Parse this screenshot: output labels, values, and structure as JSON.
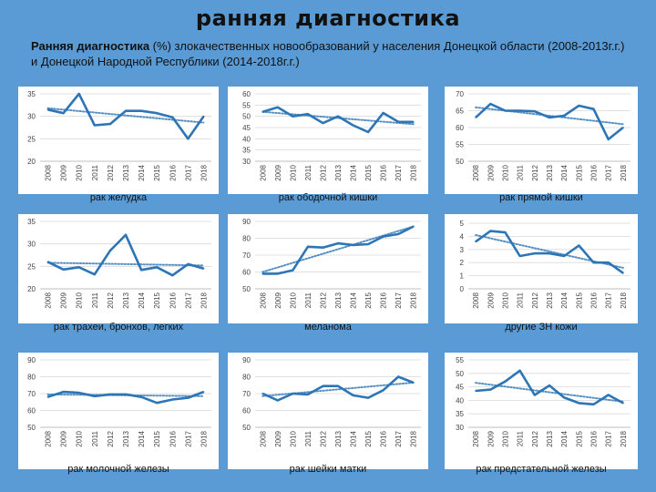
{
  "title": "ранняя диагностика",
  "subtitle_bold": "Ранняя диагностика",
  "subtitle_rest": " (%) злокачественных новообразований у населения Донецкой области (2008-2013г.г.) и Донецкой Народной Республики (2014-2018г.г.)",
  "colors": {
    "line": "#2e75b6",
    "trend": "#2e75b6",
    "panel": "#ffffff",
    "background": "#5a9bd5",
    "grid": "#d9d9d9"
  },
  "years": [
    "2008",
    "2009",
    "2010",
    "2011",
    "2012",
    "2013",
    "2014",
    "2015",
    "2016",
    "2017",
    "2018"
  ],
  "chart_data": [
    {
      "type": "line",
      "label": "рак желудка",
      "yticks": [
        20,
        25,
        30,
        35
      ],
      "ylim": [
        20,
        35
      ],
      "values": [
        31.5,
        30.7,
        35,
        28,
        28.3,
        31.2,
        31.2,
        30.7,
        29.8,
        25,
        30
      ],
      "trend": [
        31.8,
        28.6
      ]
    },
    {
      "type": "line",
      "label": "рак ободочной кишки",
      "yticks": [
        30,
        35,
        40,
        45,
        50,
        55,
        60
      ],
      "ylim": [
        30,
        60
      ],
      "values": [
        52,
        54,
        50,
        51,
        47,
        50,
        46,
        43,
        51.5,
        47.5,
        47.5
      ],
      "trend": [
        52,
        46.5
      ]
    },
    {
      "type": "line",
      "label": "рак прямой кишки",
      "yticks": [
        50,
        55,
        60,
        65,
        70
      ],
      "ylim": [
        50,
        70
      ],
      "values": [
        63,
        67,
        65,
        65,
        64.8,
        63,
        63.5,
        66.5,
        65.5,
        56.5,
        60
      ],
      "trend": [
        66,
        61
      ]
    },
    {
      "type": "line",
      "label": "рак трахеи, бронхов, легких",
      "yticks": [
        20,
        25,
        30,
        35
      ],
      "ylim": [
        20,
        35
      ],
      "values": [
        26,
        24.3,
        24.8,
        23.2,
        28.5,
        32,
        24.2,
        24.8,
        23,
        25.5,
        24.5
      ],
      "trend": [
        25.8,
        25.2
      ]
    },
    {
      "type": "line",
      "label": "меланома",
      "yticks": [
        50,
        60,
        70,
        80,
        90
      ],
      "ylim": [
        50,
        90
      ],
      "values": [
        59,
        59,
        61,
        75,
        74.5,
        77,
        76,
        76.5,
        81,
        82.5,
        87
      ],
      "trend": [
        60,
        87
      ]
    },
    {
      "type": "line",
      "label": "другие ЗН кожи",
      "yticks": [
        0,
        1,
        2,
        3,
        4,
        5
      ],
      "ylim": [
        0,
        5
      ],
      "values": [
        3.6,
        4.4,
        4.3,
        2.5,
        2.7,
        2.7,
        2.5,
        3.3,
        2.0,
        2.0,
        1.2
      ],
      "trend": [
        4.1,
        1.6
      ]
    },
    {
      "type": "line",
      "label": "рак молочной железы",
      "yticks": [
        50,
        60,
        70,
        80,
        90
      ],
      "ylim": [
        50,
        90
      ],
      "values": [
        68,
        71,
        70.5,
        68.5,
        69.5,
        69.5,
        68,
        64.5,
        66.5,
        67.5,
        71
      ],
      "trend": [
        69.5,
        68.5
      ]
    },
    {
      "type": "line",
      "label": "рак шейки матки",
      "yticks": [
        50,
        60,
        70,
        80,
        90
      ],
      "ylim": [
        50,
        90
      ],
      "values": [
        70,
        66,
        70,
        69.5,
        74.5,
        74.5,
        69,
        67.5,
        72,
        80,
        76.5
      ],
      "trend": [
        68.5,
        76.5
      ]
    },
    {
      "type": "line",
      "label": "рак предстательной железы",
      "yticks": [
        30,
        35,
        40,
        45,
        50,
        55
      ],
      "ylim": [
        30,
        55
      ],
      "values": [
        43.5,
        44,
        47,
        51,
        42,
        45.5,
        41,
        39,
        38.5,
        42,
        39
      ],
      "trend": [
        46.5,
        39.5
      ]
    }
  ]
}
